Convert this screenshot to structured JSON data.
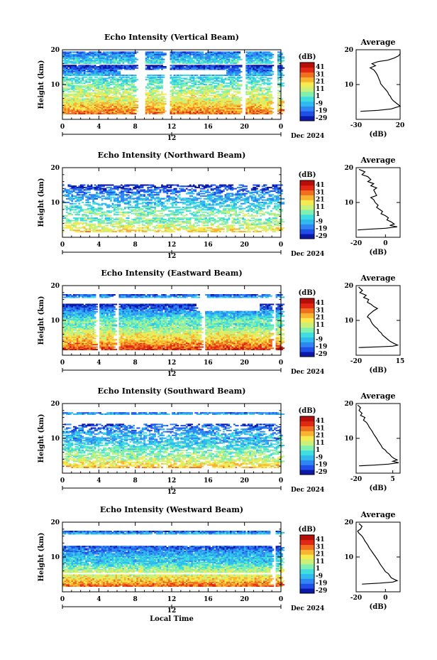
{
  "chart_data": [
    {
      "type": "heatmap",
      "title": "Echo Intensity (Vertical Beam)",
      "ylabel": "Height (km)",
      "xticks": [
        "0",
        "4",
        "8",
        "12",
        "16",
        "20",
        "0"
      ],
      "date_label": "Dec 2024",
      "mid_tick_label": "12",
      "yticks": [
        "20",
        "10"
      ],
      "ylim": [
        0,
        20
      ],
      "xlim": [
        0,
        24
      ],
      "colorbar": {
        "unit": "(dB)",
        "ticks": [
          "41",
          "31",
          "21",
          "11",
          "1",
          "-9",
          "-19",
          "-29"
        ],
        "range": [
          -29,
          41
        ]
      },
      "average": {
        "title": "Average",
        "xlabel": "(dB)",
        "xticks": [
          "-30",
          "20"
        ],
        "xlim": [
          -30,
          20
        ],
        "yticks": [
          "20",
          "10"
        ],
        "points": [
          [
            20,
            19.5
          ],
          [
            22,
            18.8
          ],
          [
            18,
            18.2
          ],
          [
            13,
            17.6
          ],
          [
            6,
            17.0
          ],
          [
            -5,
            16.6
          ],
          [
            -12,
            16.0
          ],
          [
            -8,
            15.4
          ],
          [
            -14,
            14.8
          ],
          [
            -10,
            14.2
          ],
          [
            -8,
            13.6
          ],
          [
            -6,
            12.8
          ],
          [
            -5,
            12.2
          ],
          [
            -4,
            11.6
          ],
          [
            -3,
            11.0
          ],
          [
            -2,
            10.2
          ],
          [
            0,
            9.6
          ],
          [
            2,
            9.0
          ],
          [
            4,
            8.4
          ],
          [
            6,
            7.8
          ],
          [
            7,
            7.2
          ],
          [
            9,
            6.6
          ],
          [
            10,
            6.0
          ],
          [
            12,
            5.4
          ],
          [
            15,
            4.8
          ],
          [
            18,
            4.2
          ],
          [
            22,
            3.8
          ],
          [
            15,
            3.4
          ],
          [
            10,
            3.0
          ],
          [
            -5,
            2.6
          ],
          [
            -25,
            2.3
          ]
        ]
      }
    },
    {
      "type": "heatmap",
      "title": "Echo Intensity (Northward Beam)",
      "ylabel": "Height (km)",
      "xticks": [
        "0",
        "4",
        "8",
        "12",
        "16",
        "20",
        "0"
      ],
      "date_label": "Dec 2024",
      "mid_tick_label": "12",
      "yticks": [
        "20",
        "10"
      ],
      "ylim": [
        0,
        20
      ],
      "xlim": [
        0,
        24
      ],
      "colorbar": {
        "unit": "(dB)",
        "ticks": [
          "41",
          "31",
          "21",
          "11",
          "1",
          "-9",
          "-19",
          "-29"
        ],
        "range": [
          -29,
          41
        ]
      },
      "average": {
        "title": "Average",
        "xlabel": "(dB)",
        "xticks": [
          "-20",
          "0"
        ],
        "xlim": [
          -20,
          10
        ],
        "yticks": [
          "20",
          "10"
        ],
        "points": [
          [
            -18,
            19.5
          ],
          [
            -14,
            18.8
          ],
          [
            -16,
            18.0
          ],
          [
            -12,
            17.4
          ],
          [
            -10,
            16.6
          ],
          [
            -12,
            16.0
          ],
          [
            -8,
            15.4
          ],
          [
            -10,
            14.8
          ],
          [
            -6,
            14.2
          ],
          [
            -8,
            13.6
          ],
          [
            -7,
            12.8
          ],
          [
            -6,
            12.0
          ],
          [
            -10,
            11.4
          ],
          [
            -8,
            10.8
          ],
          [
            -7,
            10.0
          ],
          [
            -5,
            9.2
          ],
          [
            -6,
            8.6
          ],
          [
            -4,
            8.0
          ],
          [
            -2,
            7.4
          ],
          [
            -3,
            6.8
          ],
          [
            0,
            6.2
          ],
          [
            2,
            5.6
          ],
          [
            1,
            5.0
          ],
          [
            4,
            4.4
          ],
          [
            6,
            3.8
          ],
          [
            3,
            3.4
          ],
          [
            8,
            3.0
          ],
          [
            0,
            2.6
          ],
          [
            -12,
            2.3
          ],
          [
            -19,
            2.1
          ]
        ]
      }
    },
    {
      "type": "heatmap",
      "title": "Echo Intensity (Eastward Beam)",
      "ylabel": "Height (km)",
      "xticks": [
        "0",
        "4",
        "8",
        "12",
        "16",
        "20",
        "0"
      ],
      "date_label": "Dec 2024",
      "mid_tick_label": "12",
      "yticks": [
        "20",
        "10"
      ],
      "ylim": [
        0,
        20
      ],
      "xlim": [
        0,
        24
      ],
      "colorbar": {
        "unit": "(dB)",
        "ticks": [
          "41",
          "31",
          "21",
          "11",
          "1",
          "-9",
          "-19",
          "-29"
        ],
        "range": [
          -29,
          41
        ]
      },
      "average": {
        "title": "Average",
        "xlabel": "(dB)",
        "xticks": [
          "-20",
          "15"
        ],
        "xlim": [
          -20,
          15
        ],
        "yticks": [
          "20",
          "10"
        ],
        "points": [
          [
            -18,
            19.6
          ],
          [
            -15,
            18.6
          ],
          [
            -17,
            18.0
          ],
          [
            -12,
            17.2
          ],
          [
            -14,
            16.6
          ],
          [
            -10,
            16.0
          ],
          [
            -11,
            15.2
          ],
          [
            -8,
            14.6
          ],
          [
            -6,
            14.0
          ],
          [
            -3,
            13.4
          ],
          [
            -6,
            12.8
          ],
          [
            -8,
            12.2
          ],
          [
            -10,
            11.6
          ],
          [
            -11,
            11.0
          ],
          [
            -9,
            10.4
          ],
          [
            -8,
            9.6
          ],
          [
            -7,
            9.0
          ],
          [
            -5,
            8.2
          ],
          [
            -3,
            7.6
          ],
          [
            -2,
            7.0
          ],
          [
            0,
            6.4
          ],
          [
            1,
            5.8
          ],
          [
            3,
            5.2
          ],
          [
            5,
            4.6
          ],
          [
            7,
            4.0
          ],
          [
            10,
            3.4
          ],
          [
            13,
            2.9
          ],
          [
            9,
            2.6
          ],
          [
            -2,
            2.4
          ],
          [
            -18,
            2.2
          ]
        ]
      }
    },
    {
      "type": "heatmap",
      "title": "Echo Intensity (Southward Beam)",
      "ylabel": "Height (km)",
      "xticks": [
        "0",
        "4",
        "8",
        "12",
        "16",
        "20",
        "0"
      ],
      "date_label": "Dec 2024",
      "mid_tick_label": "12",
      "yticks": [
        "20",
        "10"
      ],
      "ylim": [
        0,
        20
      ],
      "xlim": [
        0,
        24
      ],
      "colorbar": {
        "unit": "(dB)",
        "ticks": [
          "41",
          "31",
          "21",
          "11",
          "1",
          "-9",
          "-19",
          "-29"
        ],
        "range": [
          -29,
          41
        ]
      },
      "average": {
        "title": "Average",
        "xlabel": "(dB)",
        "xticks": [
          "-20",
          "5"
        ],
        "xlim": [
          -20,
          10
        ],
        "yticks": [
          "20",
          "10"
        ],
        "points": [
          [
            -19,
            19.6
          ],
          [
            -17,
            18.8
          ],
          [
            -18,
            18.0
          ],
          [
            -16,
            17.2
          ],
          [
            -17,
            16.6
          ],
          [
            -14,
            16.0
          ],
          [
            -15,
            15.2
          ],
          [
            -13,
            14.6
          ],
          [
            -12,
            14.0
          ],
          [
            -11,
            13.2
          ],
          [
            -10,
            12.6
          ],
          [
            -9,
            12.0
          ],
          [
            -8,
            11.2
          ],
          [
            -7,
            10.6
          ],
          [
            -6,
            10.0
          ],
          [
            -5,
            9.2
          ],
          [
            -4,
            8.6
          ],
          [
            -3,
            8.0
          ],
          [
            -2,
            7.2
          ],
          [
            0,
            6.6
          ],
          [
            1,
            6.0
          ],
          [
            3,
            5.4
          ],
          [
            4,
            4.8
          ],
          [
            6,
            4.2
          ],
          [
            8,
            3.8
          ],
          [
            5,
            3.4
          ],
          [
            9,
            3.0
          ],
          [
            2,
            2.6
          ],
          [
            -8,
            2.3
          ],
          [
            -18,
            2.1
          ]
        ]
      }
    },
    {
      "type": "heatmap",
      "title": "Echo Intensity (Westward Beam)",
      "ylabel": "Height (km)",
      "xlabel": "Local Time",
      "xticks": [
        "0",
        "4",
        "8",
        "12",
        "16",
        "20",
        "0"
      ],
      "date_label": "Dec 2024",
      "mid_tick_label": "12",
      "yticks": [
        "20",
        "10"
      ],
      "ylim": [
        0,
        20
      ],
      "xlim": [
        0,
        24
      ],
      "colorbar": {
        "unit": "(dB)",
        "ticks": [
          "41",
          "31",
          "21",
          "11",
          "1",
          "-9",
          "-19",
          "-29"
        ],
        "range": [
          -29,
          41
        ]
      },
      "average": {
        "title": "Average",
        "xlabel": "(dB)",
        "xticks": [
          "-20",
          "0"
        ],
        "xlim": [
          -20,
          10
        ],
        "yticks": [
          "20",
          "10"
        ],
        "points": [
          [
            -18,
            19.6
          ],
          [
            -16,
            18.8
          ],
          [
            -17,
            18.0
          ],
          [
            -19,
            17.4
          ],
          [
            -18,
            16.8
          ],
          [
            -16,
            16.0
          ],
          [
            -15,
            15.4
          ],
          [
            -14,
            14.6
          ],
          [
            -13,
            14.0
          ],
          [
            -12,
            13.4
          ],
          [
            -11,
            12.6
          ],
          [
            -10,
            12.0
          ],
          [
            -9,
            11.4
          ],
          [
            -8,
            10.8
          ],
          [
            -7,
            10.2
          ],
          [
            -6,
            9.6
          ],
          [
            -5,
            9.0
          ],
          [
            -4,
            8.2
          ],
          [
            -3,
            7.6
          ],
          [
            -2,
            7.0
          ],
          [
            -1,
            6.4
          ],
          [
            0,
            5.8
          ],
          [
            2,
            5.2
          ],
          [
            3,
            4.6
          ],
          [
            4,
            4.0
          ],
          [
            6,
            3.6
          ],
          [
            8,
            3.2
          ],
          [
            5,
            2.8
          ],
          [
            -4,
            2.5
          ],
          [
            -16,
            2.2
          ]
        ]
      }
    }
  ],
  "colors": {
    "scale": [
      "#0b18a8",
      "#1f4fe6",
      "#2f86f2",
      "#2fb9ee",
      "#3fdce0",
      "#7ff0b0",
      "#c8f07a",
      "#f5ea50",
      "#f8b430",
      "#f07020",
      "#e02814",
      "#b80e0a"
    ],
    "axis": "#000000",
    "background": "#ffffff"
  }
}
